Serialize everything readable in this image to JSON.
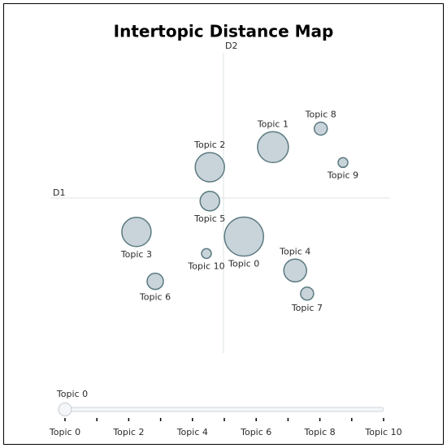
{
  "chart_data": {
    "type": "bubble",
    "title": "Intertopic Distance Map",
    "x_label": "D1",
    "y_label": "D2",
    "xlim": [
      -10,
      10
    ],
    "ylim": [
      -10,
      10
    ],
    "labels": [
      "Topic 0",
      "Topic 1",
      "Topic 2",
      "Topic 3",
      "Topic 4",
      "Topic 5",
      "Topic 6",
      "Topic 7",
      "Topic 8",
      "Topic 9",
      "Topic 10"
    ],
    "x": [
      1.2,
      2.9,
      -0.8,
      -5.1,
      4.2,
      -0.8,
      -4.0,
      4.9,
      5.7,
      7.0,
      -1.0
    ],
    "y": [
      -2.5,
      3.3,
      2.0,
      -2.2,
      -4.7,
      -0.2,
      -5.4,
      -6.2,
      4.5,
      2.3,
      -3.6
    ],
    "sizes": [
      576,
      361,
      324,
      324,
      196,
      144,
      100,
      64,
      64,
      36,
      36
    ],
    "color": "#c9d3da",
    "edge_color": "#5b7a80",
    "slider": {
      "label": "Topic 0",
      "value": 0,
      "ticks": [
        "Topic 0",
        "Topic 2",
        "Topic 4",
        "Topic 6",
        "Topic 8",
        "Topic 10"
      ]
    }
  }
}
